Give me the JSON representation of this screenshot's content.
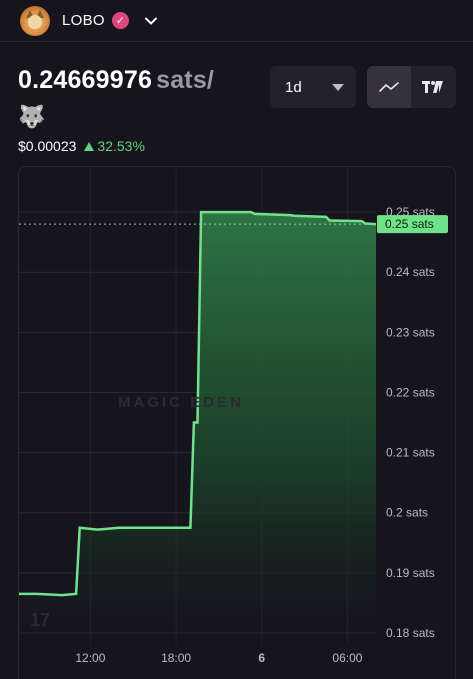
{
  "header": {
    "token_name": "LOBO",
    "verified_icon": "verified-check-icon",
    "dropdown_icon": "chevron-down-icon"
  },
  "price": {
    "value": "0.24669976",
    "unit": "sats/",
    "unit_icon": "wolf-icon",
    "usd": "$0.00023",
    "change": "32.53%",
    "change_color": "#5ed47d"
  },
  "controls": {
    "timeframe": "1d",
    "chart_modes": [
      "line-chart-icon",
      "tradingview-icon"
    ],
    "active_mode": "line-chart-icon"
  },
  "watermark": "MAGIC EDEN",
  "chart_data": {
    "type": "area",
    "series": [
      {
        "points": [
          [
            0,
            0.1865
          ],
          [
            0.5,
            0.1865
          ],
          [
            1.2,
            0.1863
          ],
          [
            1.6,
            0.1865
          ],
          [
            1.7,
            0.1975
          ],
          [
            2.2,
            0.1972
          ],
          [
            2.8,
            0.1975
          ],
          [
            4.8,
            0.1975
          ],
          [
            4.9,
            0.215
          ],
          [
            5.0,
            0.215
          ],
          [
            5.1,
            0.25
          ],
          [
            5.6,
            0.25
          ],
          [
            6.5,
            0.25
          ],
          [
            6.6,
            0.2497
          ],
          [
            7.6,
            0.2495
          ],
          [
            7.7,
            0.2494
          ],
          [
            8.6,
            0.2492
          ],
          [
            8.7,
            0.2486
          ],
          [
            9.6,
            0.2485
          ],
          [
            9.7,
            0.2481
          ],
          [
            10.0,
            0.248
          ]
        ],
        "color": "#6fe38a"
      }
    ],
    "current_price_label": "0.25 sats",
    "y_ticks": [
      {
        "value": 0.25,
        "label": "0.25 sats"
      },
      {
        "value": 0.24,
        "label": "0.24 sats"
      },
      {
        "value": 0.23,
        "label": "0.23 sats"
      },
      {
        "value": 0.22,
        "label": "0.22 sats"
      },
      {
        "value": 0.21,
        "label": "0.21 sats"
      },
      {
        "value": 0.2,
        "label": "0.2 sats"
      },
      {
        "value": 0.19,
        "label": "0.19 sats"
      },
      {
        "value": 0.18,
        "label": "0.18 sats"
      }
    ],
    "x_ticks": [
      {
        "value": 2.0,
        "label": "12:00",
        "bold": false
      },
      {
        "value": 4.4,
        "label": "18:00",
        "bold": false
      },
      {
        "value": 6.8,
        "label": "6",
        "bold": true
      },
      {
        "value": 9.2,
        "label": "06:00",
        "bold": false
      }
    ],
    "ylim": [
      0.178,
      0.257
    ],
    "xlim": [
      0,
      10
    ],
    "grid": true
  }
}
